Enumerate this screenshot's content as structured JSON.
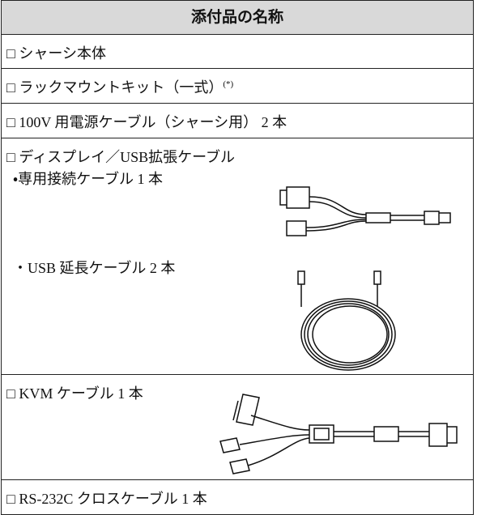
{
  "table": {
    "header": "添付品の名称",
    "rows": [
      {
        "label": "□ シャーシ本体"
      },
      {
        "label": "□ ラックマウントキット（一式）",
        "note": "(*)"
      },
      {
        "label": "□ 100V 用電源ケーブル（シャーシ用） 2 本"
      },
      {
        "label": "□ ディスプレイ／USB拡張ケーブル",
        "items": [
          "・専用接続ケーブル 1 本",
          "・USB 延長ケーブル 2 本"
        ]
      },
      {
        "label": "□ KVM ケーブル 1 本"
      },
      {
        "label": "□ RS-232C クロスケーブル 1 本"
      }
    ]
  }
}
